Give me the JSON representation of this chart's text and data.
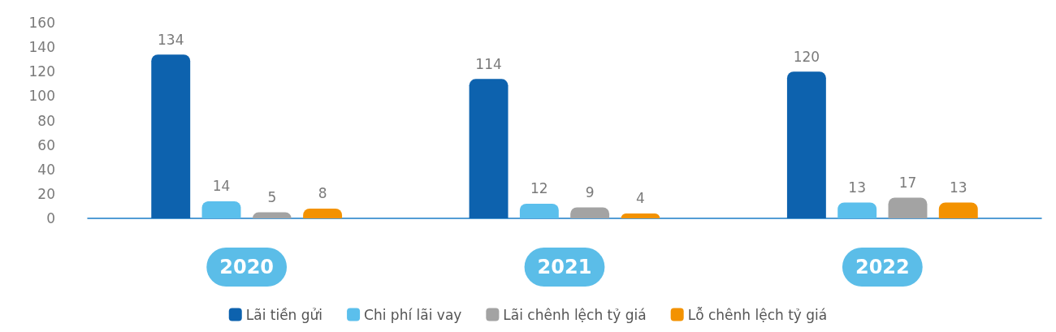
{
  "chart_data": {
    "type": "bar",
    "categories": [
      "2020",
      "2021",
      "2022"
    ],
    "series": [
      {
        "name": "Lãi tiền gửi",
        "color": "#0d62ae",
        "values": [
          134,
          114,
          120
        ]
      },
      {
        "name": "Chi phí lãi vay",
        "color": "#5bbfec",
        "values": [
          14,
          12,
          13
        ]
      },
      {
        "name": "Lãi chênh lệch tỷ giá",
        "color": "#a3a3a3",
        "values": [
          5,
          9,
          17
        ]
      },
      {
        "name": "Lỗ chênh lệch tỷ giá",
        "color": "#f39200",
        "values": [
          8,
          4,
          13
        ]
      }
    ],
    "ylim": [
      0,
      160
    ],
    "yticks": [
      0,
      20,
      40,
      60,
      80,
      100,
      120,
      140,
      160
    ],
    "grid": false,
    "legend": "bottom",
    "data_labels": true
  }
}
